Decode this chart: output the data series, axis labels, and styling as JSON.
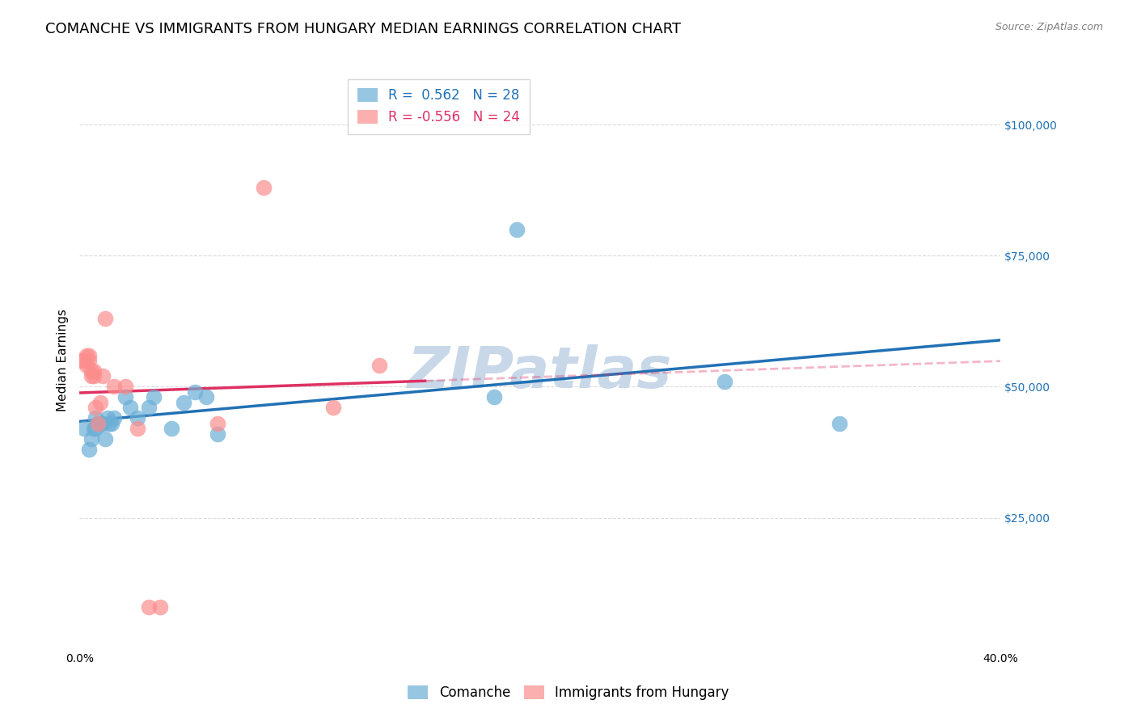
{
  "title": "COMANCHE VS IMMIGRANTS FROM HUNGARY MEDIAN EARNINGS CORRELATION CHART",
  "source": "Source: ZipAtlas.com",
  "xlabel": "",
  "ylabel": "Median Earnings",
  "xlim": [
    0.0,
    0.4
  ],
  "ylim": [
    0,
    110000
  ],
  "yticks": [
    25000,
    50000,
    75000,
    100000
  ],
  "ytick_labels": [
    "$25,000",
    "$50,000",
    "$75,000",
    "$100,000"
  ],
  "xticks": [
    0.0,
    0.05,
    0.1,
    0.15,
    0.2,
    0.25,
    0.3,
    0.35,
    0.4
  ],
  "xtick_labels": [
    "0.0%",
    "",
    "",
    "",
    "",
    "",
    "",
    "",
    "40.0%"
  ],
  "blue_R": 0.562,
  "blue_N": 28,
  "pink_R": -0.556,
  "pink_N": 24,
  "blue_color": "#6baed6",
  "pink_color": "#fc8d8d",
  "blue_line_color": "#2171b5",
  "pink_line_color": "#de3163",
  "background_color": "#ffffff",
  "grid_color": "#cccccc",
  "watermark": "ZIPatlas",
  "watermark_color": "#c8d8e8",
  "blue_x": [
    0.002,
    0.004,
    0.005,
    0.006,
    0.007,
    0.007,
    0.008,
    0.009,
    0.01,
    0.011,
    0.012,
    0.013,
    0.014,
    0.015,
    0.02,
    0.022,
    0.025,
    0.03,
    0.032,
    0.04,
    0.045,
    0.05,
    0.055,
    0.06,
    0.18,
    0.19,
    0.28,
    0.33
  ],
  "blue_y": [
    42000,
    38000,
    40000,
    42000,
    42000,
    44000,
    43000,
    43000,
    43000,
    40000,
    44000,
    43000,
    43000,
    44000,
    48000,
    46000,
    44000,
    46000,
    48000,
    42000,
    47000,
    49000,
    48000,
    41000,
    48000,
    80000,
    51000,
    43000
  ],
  "pink_x": [
    0.001,
    0.002,
    0.003,
    0.003,
    0.004,
    0.004,
    0.005,
    0.005,
    0.006,
    0.006,
    0.007,
    0.008,
    0.009,
    0.01,
    0.011,
    0.015,
    0.02,
    0.025,
    0.03,
    0.035,
    0.06,
    0.08,
    0.11,
    0.13
  ],
  "pink_y": [
    55000,
    55000,
    54000,
    56000,
    55000,
    56000,
    52000,
    53000,
    52000,
    53000,
    46000,
    43000,
    47000,
    52000,
    63000,
    50000,
    50000,
    42000,
    8000,
    8000,
    43000,
    88000,
    46000,
    54000
  ],
  "title_fontsize": 13,
  "axis_label_fontsize": 11,
  "tick_fontsize": 10,
  "legend_fontsize": 12
}
